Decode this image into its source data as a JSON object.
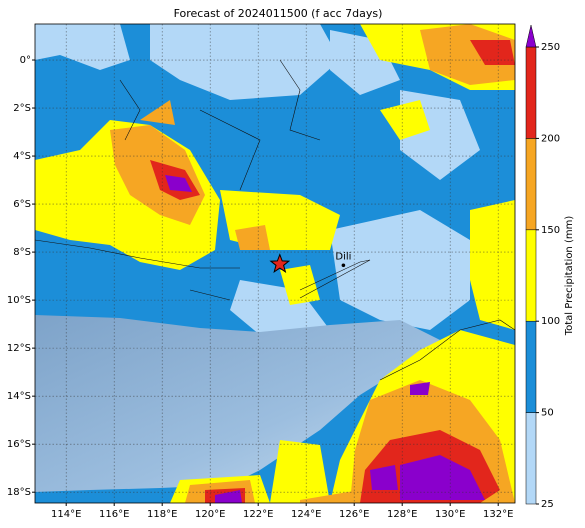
{
  "map": {
    "title": "Forecast of 2024011500 (f acc 7days)",
    "lon_range": [
      112.7,
      132.7
    ],
    "lat_range": [
      -18.45,
      1.5
    ],
    "lon_ticks": [
      {
        "value": 114,
        "label": "114°E"
      },
      {
        "value": 116,
        "label": "116°E"
      },
      {
        "value": 118,
        "label": "118°E"
      },
      {
        "value": 120,
        "label": "120°E"
      },
      {
        "value": 122,
        "label": "122°E"
      },
      {
        "value": 124,
        "label": "124°E"
      },
      {
        "value": 126,
        "label": "126°E"
      },
      {
        "value": 128,
        "label": "128°E"
      },
      {
        "value": 130,
        "label": "130°E"
      },
      {
        "value": 132,
        "label": "132°E"
      }
    ],
    "lat_ticks": [
      {
        "value": 0,
        "label": "0°"
      },
      {
        "value": -2,
        "label": "2°S"
      },
      {
        "value": -4,
        "label": "4°S"
      },
      {
        "value": -6,
        "label": "6°S"
      },
      {
        "value": -8,
        "label": "8°S"
      },
      {
        "value": -10,
        "label": "10°S"
      },
      {
        "value": -12,
        "label": "12°S"
      },
      {
        "value": -14,
        "label": "14°S"
      },
      {
        "value": -16,
        "label": "16°S"
      },
      {
        "value": -18,
        "label": "18°S"
      }
    ],
    "colorbar": {
      "label": "Total Precipitation (mm)",
      "levels": [
        25,
        50,
        100,
        150,
        200,
        250
      ],
      "colors": [
        "#b3d8f7",
        "#1c8ed8",
        "#ffff00",
        "#f6a623",
        "#e2261c"
      ],
      "extend_color": "#8a00cc"
    },
    "places": [
      {
        "name": "Dili",
        "lon": 125.55,
        "lat": -8.55
      }
    ],
    "star": {
      "lon": 122.9,
      "lat": -8.5
    }
  }
}
